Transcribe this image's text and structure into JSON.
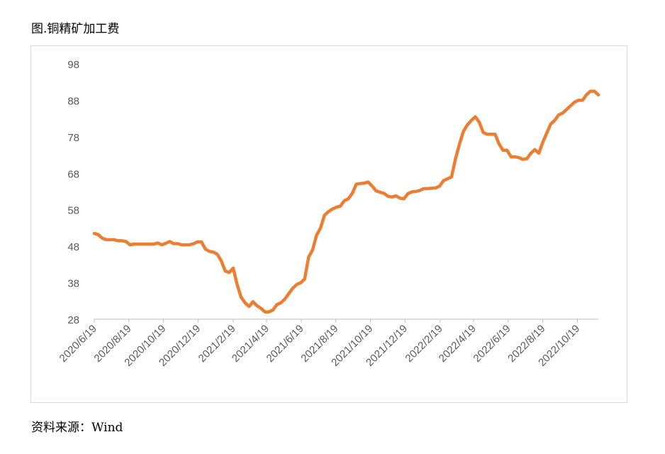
{
  "figure": {
    "title": "图.铜精矿加工费",
    "source": "资料来源：Wind"
  },
  "chart_data": {
    "type": "line",
    "title": "图.铜精矿加工费",
    "xlabel": "",
    "ylabel": "",
    "ylim": [
      28,
      98
    ],
    "yticks": [
      28,
      38,
      48,
      58,
      68,
      78,
      88,
      98
    ],
    "xticks": [
      "2020/6/19",
      "2020/8/19",
      "2020/10/19",
      "2020/12/19",
      "2021/2/19",
      "2021/4/19",
      "2021/6/19",
      "2021/8/19",
      "2021/10/19",
      "2021/12/19",
      "2022/2/19",
      "2022/4/19",
      "2022/6/19",
      "2022/8/19",
      "2022/10/19"
    ],
    "grid": false,
    "legend": "none",
    "line_color": "#ed7d31",
    "series": [
      {
        "name": "",
        "x": [
          "2020-06-19",
          "2020-06-26",
          "2020-07-03",
          "2020-07-10",
          "2020-07-17",
          "2020-07-24",
          "2020-07-31",
          "2020-08-07",
          "2020-08-14",
          "2020-08-21",
          "2020-08-28",
          "2020-09-04",
          "2020-09-11",
          "2020-09-18",
          "2020-09-25",
          "2020-10-02",
          "2020-10-09",
          "2020-10-16",
          "2020-10-23",
          "2020-10-30",
          "2020-11-06",
          "2020-11-13",
          "2020-11-20",
          "2020-11-27",
          "2020-12-04",
          "2020-12-11",
          "2020-12-18",
          "2020-12-25",
          "2021-01-01",
          "2021-01-08",
          "2021-01-15",
          "2021-01-22",
          "2021-01-29",
          "2021-02-05",
          "2021-02-12",
          "2021-02-19",
          "2021-02-26",
          "2021-03-05",
          "2021-03-12",
          "2021-03-19",
          "2021-03-26",
          "2021-04-02",
          "2021-04-09",
          "2021-04-16",
          "2021-04-23",
          "2021-04-30",
          "2021-05-07",
          "2021-05-14",
          "2021-05-21",
          "2021-05-28",
          "2021-06-04",
          "2021-06-11",
          "2021-06-18",
          "2021-06-25",
          "2021-07-02",
          "2021-07-09",
          "2021-07-16",
          "2021-07-23",
          "2021-07-30",
          "2021-08-06",
          "2021-08-13",
          "2021-08-20",
          "2021-08-27",
          "2021-09-03",
          "2021-09-10",
          "2021-09-17",
          "2021-09-24",
          "2021-10-01",
          "2021-10-08",
          "2021-10-15",
          "2021-10-22",
          "2021-10-29",
          "2021-11-05",
          "2021-11-12",
          "2021-11-19",
          "2021-11-26",
          "2021-12-03",
          "2021-12-10",
          "2021-12-17",
          "2021-12-24",
          "2021-12-31",
          "2022-01-07",
          "2022-01-14",
          "2022-01-21",
          "2022-01-28",
          "2022-02-04",
          "2022-02-11",
          "2022-02-18",
          "2022-02-25",
          "2022-03-04",
          "2022-03-11",
          "2022-03-18",
          "2022-03-25",
          "2022-04-01",
          "2022-04-08",
          "2022-04-15",
          "2022-04-22",
          "2022-04-29",
          "2022-05-06",
          "2022-05-13",
          "2022-05-20",
          "2022-05-27",
          "2022-06-03",
          "2022-06-10",
          "2022-06-17",
          "2022-06-24",
          "2022-07-01",
          "2022-07-08",
          "2022-07-15",
          "2022-07-22",
          "2022-07-29",
          "2022-08-05",
          "2022-08-12",
          "2022-08-19",
          "2022-08-26",
          "2022-09-02",
          "2022-09-09",
          "2022-09-16",
          "2022-09-23",
          "2022-09-30",
          "2022-10-07",
          "2022-10-14",
          "2022-10-21",
          "2022-10-28",
          "2022-11-04",
          "2022-11-11",
          "2022-11-18",
          "2022-11-25"
        ],
        "values": [
          51.5,
          51.2,
          50.2,
          49.8,
          49.8,
          49.8,
          49.5,
          49.5,
          49.3,
          48.4,
          48.6,
          48.6,
          48.6,
          48.6,
          48.6,
          48.6,
          48.9,
          48.4,
          48.8,
          49.3,
          48.7,
          48.7,
          48.4,
          48.4,
          48.4,
          48.7,
          49.2,
          49.2,
          47.2,
          46.6,
          46.4,
          45.8,
          44.0,
          41.2,
          40.8,
          42.0,
          37.5,
          34.0,
          32.5,
          31.5,
          32.8,
          31.7,
          31.0,
          30.0,
          30.0,
          30.5,
          32.0,
          32.5,
          33.5,
          35.0,
          36.5,
          37.5,
          38.0,
          39.0,
          45.0,
          47.0,
          51.0,
          53.0,
          56.5,
          57.5,
          58.2,
          58.7,
          59.0,
          60.5,
          61.0,
          62.5,
          65.0,
          65.2,
          65.3,
          65.6,
          64.5,
          63.2,
          62.8,
          62.5,
          61.7,
          61.5,
          61.8,
          61.2,
          61.0,
          62.4,
          62.9,
          63.0,
          63.3,
          63.8,
          63.8,
          63.9,
          64.0,
          64.5,
          66.0,
          66.5,
          67.0,
          72.0,
          76.0,
          79.5,
          81.3,
          82.5,
          83.5,
          82.0,
          79.2,
          78.7,
          78.7,
          78.7,
          76.0,
          74.3,
          74.3,
          72.5,
          72.5,
          72.3,
          71.8,
          72.0,
          73.5,
          74.5,
          73.5,
          76.5,
          79.0,
          81.5,
          82.5,
          84.0,
          84.5,
          85.5,
          86.5,
          87.5,
          88.0,
          88.0,
          89.5,
          90.5,
          90.5,
          89.5
        ]
      }
    ]
  }
}
